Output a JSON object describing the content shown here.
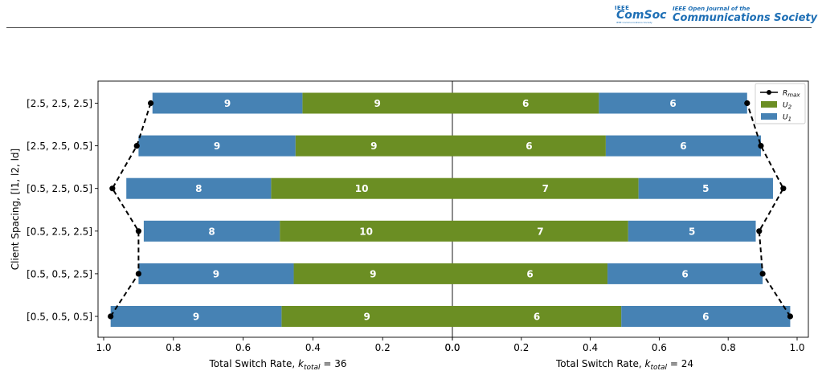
{
  "header": {
    "logo_ieee": "IEEE",
    "logo_name": "ComSoc",
    "logo_sub": "IEEE Communications Society",
    "journal_line1": "IEEE Open Journal of the",
    "journal_line2": "Communications Society"
  },
  "chart_data": {
    "type": "bar",
    "orientation": "horizontal-stacked-mirrored",
    "ylabel": "Client Spacing, [l1, l2, ld]",
    "categories": [
      "[0.5, 0.5, 0.5]",
      "[0.5, 0.5, 2.5]",
      "[0.5, 2.5, 2.5]",
      "[0.5, 2.5, 0.5]",
      "[2.5, 2.5, 0.5]",
      "[2.5, 2.5, 2.5]"
    ],
    "legend_position": "top-right",
    "legend": [
      {
        "key": "rmax",
        "label_main": "R",
        "label_sub": "max"
      },
      {
        "key": "u2",
        "label_main": "U",
        "label_sub": "2"
      },
      {
        "key": "u1",
        "label_main": "U",
        "label_sub": "1"
      }
    ],
    "colors": {
      "U1": "#4682b4",
      "U2": "#6b8e23",
      "Rmax": "#000000"
    },
    "panels": [
      {
        "side": "left",
        "xlabel_prefix": "Total Switch Rate, ",
        "xlabel_var": "k",
        "xlabel_sub": "total",
        "xlabel_suffix": " = 36",
        "xlim": [
          1.0,
          0.0
        ],
        "xticks": [
          "1.0",
          "0.8",
          "0.6",
          "0.4",
          "0.2",
          "0.0"
        ],
        "series": [
          {
            "name": "U2",
            "rates": [
              0.49,
              0.455,
              0.495,
              0.52,
              0.45,
              0.43
            ],
            "labels": [
              "9",
              "9",
              "10",
              "10",
              "9",
              "9"
            ]
          },
          {
            "name": "U1",
            "rates": [
              0.49,
              0.445,
              0.39,
              0.415,
              0.45,
              0.43
            ],
            "labels": [
              "9",
              "9",
              "8",
              "8",
              "9",
              "9"
            ]
          },
          {
            "name": "Rmax",
            "values": [
              0.98,
              0.9,
              0.9,
              0.975,
              0.905,
              0.865
            ]
          }
        ]
      },
      {
        "side": "right",
        "xlabel_prefix": "Total Switch Rate, ",
        "xlabel_var": "k",
        "xlabel_sub": "total",
        "xlabel_suffix": " = 24",
        "xlim": [
          0.0,
          1.0
        ],
        "xticks": [
          "0.0",
          "0.2",
          "0.4",
          "0.6",
          "0.8",
          "1.0"
        ],
        "series": [
          {
            "name": "U2",
            "rates": [
              0.49,
              0.45,
              0.51,
              0.54,
              0.445,
              0.425
            ],
            "labels": [
              "6",
              "6",
              "7",
              "7",
              "6",
              "6"
            ]
          },
          {
            "name": "U1",
            "rates": [
              0.49,
              0.45,
              0.37,
              0.39,
              0.45,
              0.43
            ],
            "labels": [
              "6",
              "6",
              "5",
              "5",
              "6",
              "6"
            ]
          },
          {
            "name": "Rmax",
            "values": [
              0.98,
              0.9,
              0.89,
              0.96,
              0.895,
              0.855
            ]
          }
        ]
      }
    ]
  }
}
